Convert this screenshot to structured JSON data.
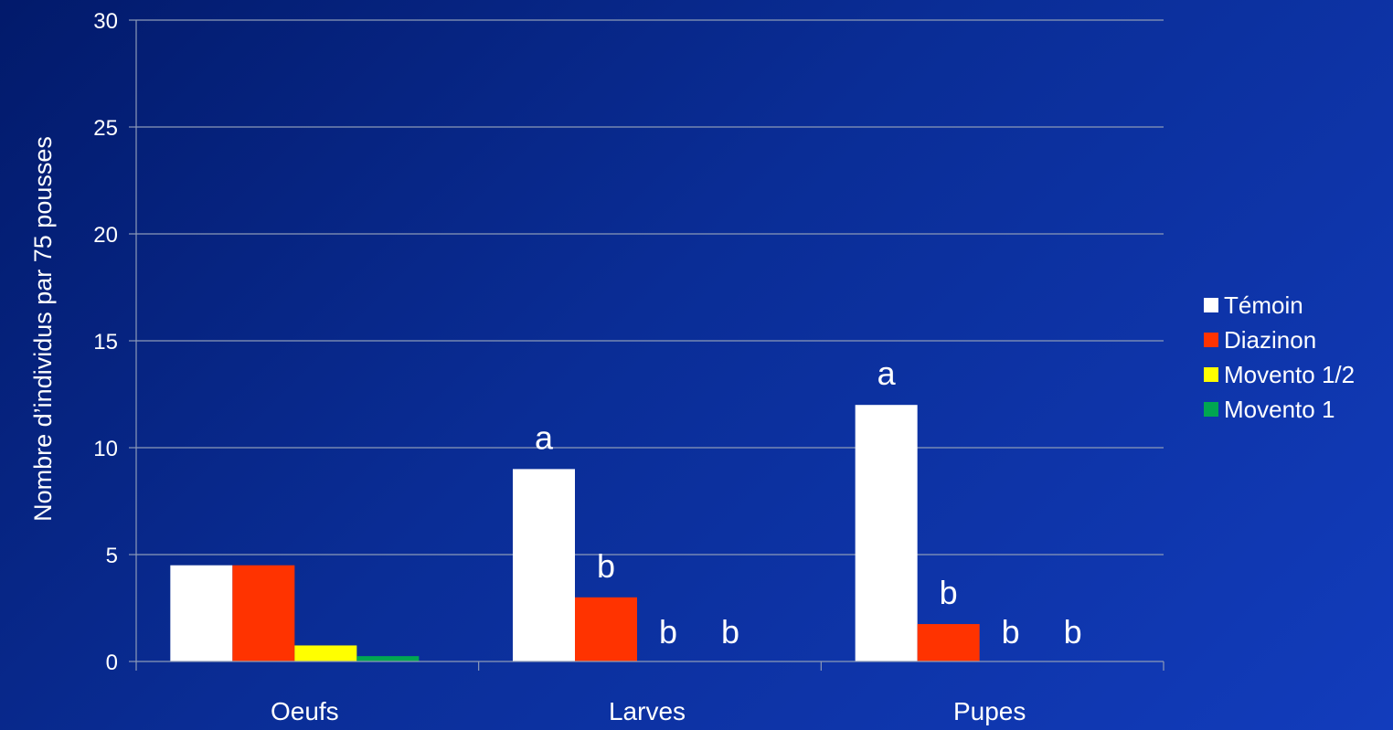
{
  "chart_data": {
    "type": "bar",
    "title": "",
    "xlabel": "",
    "ylabel": "Nombre d’individus  par 75 pousses",
    "ylim": [
      0,
      30
    ],
    "yticks": [
      0,
      5,
      10,
      15,
      20,
      25,
      30
    ],
    "categories": [
      "Oeufs",
      "Larves",
      "Pupes"
    ],
    "series": [
      {
        "name": "Témoin",
        "color": "#ffffff",
        "values": [
          4.5,
          9,
          12
        ],
        "labels": [
          "",
          "a",
          "a"
        ]
      },
      {
        "name": "Diazinon",
        "color": "#ff3300",
        "values": [
          4.5,
          3,
          1.75
        ],
        "labels": [
          "",
          "b",
          "b"
        ]
      },
      {
        "name": "Movento 1/2",
        "color": "#ffff00",
        "values": [
          0.75,
          0,
          0
        ],
        "labels": [
          "",
          "b",
          "b"
        ]
      },
      {
        "name": "Movento 1",
        "color": "#00a651",
        "values": [
          0.25,
          0,
          0
        ],
        "labels": [
          "",
          "b",
          "b"
        ]
      }
    ],
    "grid": true,
    "legend": "right"
  }
}
